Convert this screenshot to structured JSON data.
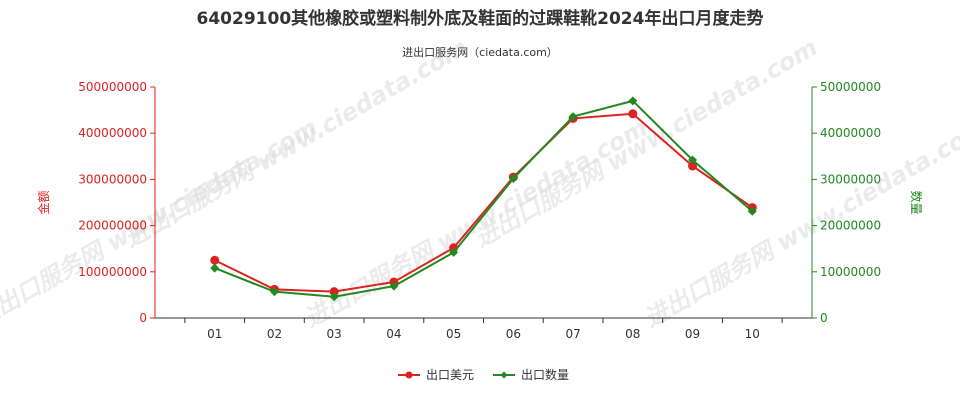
{
  "chart_data": {
    "type": "line",
    "title": "64029100其他橡胶或塑料制外底及鞋面的过踝鞋靴2024年出口月度走势",
    "subtitle": "进出口服务网（ciedata.com）",
    "categories": [
      "01",
      "02",
      "03",
      "04",
      "05",
      "06",
      "07",
      "08",
      "09",
      "10"
    ],
    "y_left": {
      "label": "金额",
      "ylim": [
        0,
        500000000
      ],
      "ticks": [
        "0",
        "100000000",
        "200000000",
        "300000000",
        "400000000",
        "500000000"
      ],
      "color": "#dd2222"
    },
    "y_right": {
      "label": "数量",
      "ylim": [
        0,
        50000000
      ],
      "ticks": [
        "0",
        "10000000",
        "20000000",
        "30000000",
        "40000000",
        "50000000"
      ],
      "color": "#228822"
    },
    "series": [
      {
        "name": "出口美元",
        "axis": "left",
        "color": "#dd2222",
        "values": [
          125000000,
          62000000,
          57000000,
          78000000,
          152000000,
          305000000,
          432000000,
          442000000,
          329000000,
          239000000
        ]
      },
      {
        "name": "出口数量",
        "axis": "right",
        "color": "#228822",
        "values": [
          10800000,
          5700000,
          4600000,
          6900000,
          14200000,
          30200000,
          43600000,
          47000000,
          34200000,
          23100000
        ]
      }
    ],
    "grid": false,
    "legend": "bottom-center",
    "watermark": "进出口服务网 www.ciedata.com"
  }
}
